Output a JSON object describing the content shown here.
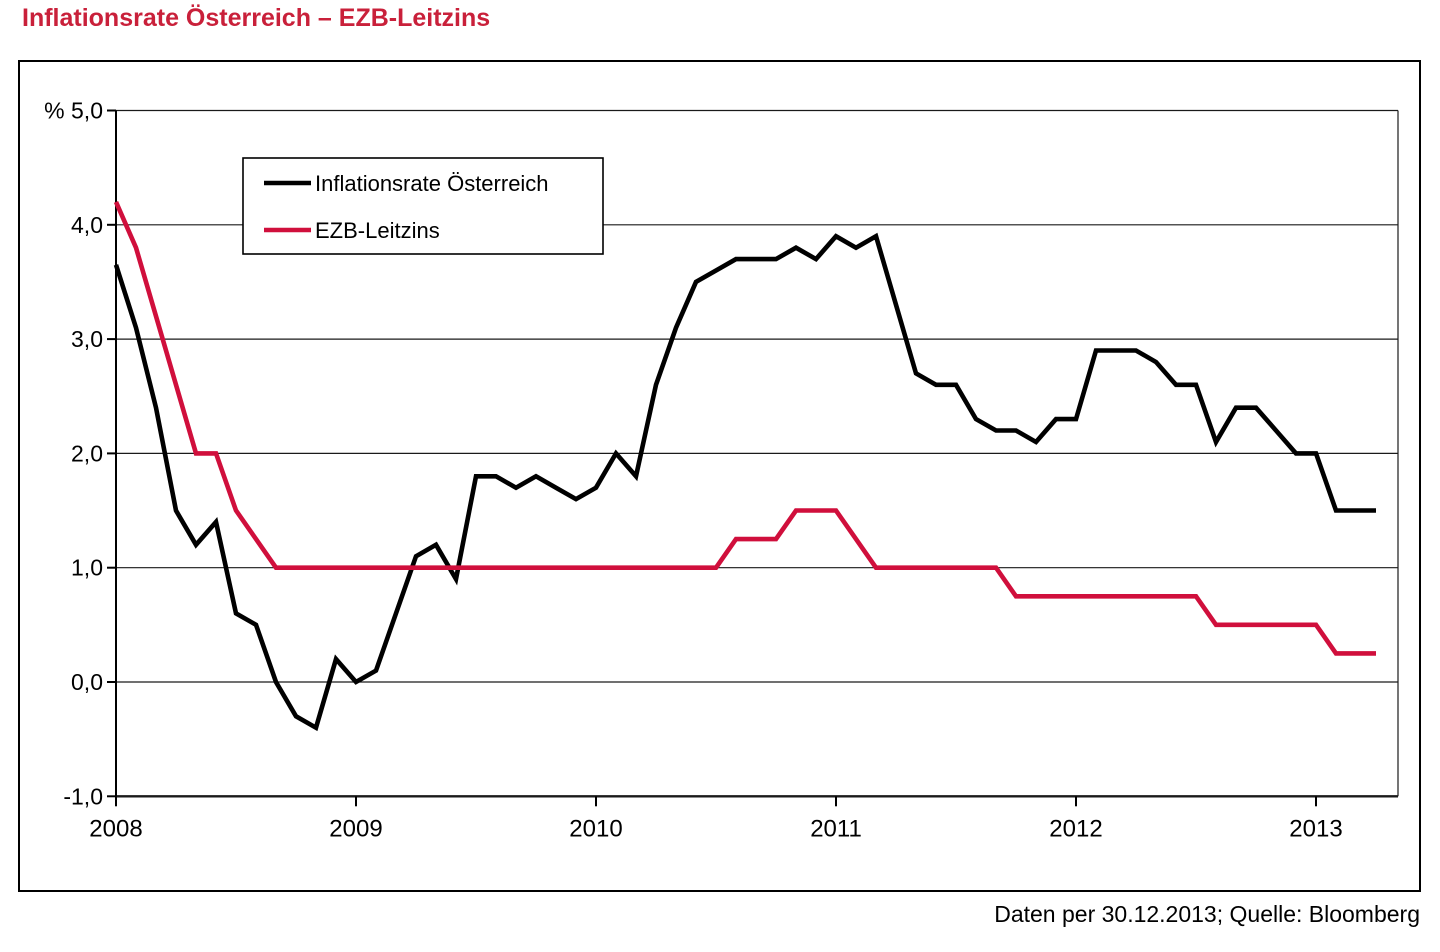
{
  "title": "Inflationsrate Österreich – EZB-Leitzins",
  "caption": "Daten per 30.12.2013; Quelle: Bloomberg",
  "colors": {
    "title_red": "#c9203a",
    "inflation_line": "#000000",
    "ezb_line": "#d00f3c",
    "grid": "#1a1a1a",
    "background": "#ffffff"
  },
  "chart_data": {
    "type": "line",
    "title": "Inflationsrate Österreich – EZB-Leitzins",
    "xlabel": "",
    "ylabel": "%",
    "x_start_year": 2008,
    "x_step_months": 1,
    "xlim": [
      2008.0,
      2013.34
    ],
    "ylim": [
      -1.0,
      5.0
    ],
    "grid": "horizontal",
    "legend_position": "upper-left-inside",
    "x_ticks": [
      2008,
      2009,
      2010,
      2011,
      2012,
      2013
    ],
    "x_tick_labels": [
      "2008",
      "2009",
      "2010",
      "2011",
      "2012",
      "2013"
    ],
    "y_ticks": [
      5.0,
      4.0,
      3.0,
      2.0,
      1.0,
      0.0,
      -1.0
    ],
    "y_tick_labels": [
      "% 5,0",
      "4,0",
      "3,0",
      "2,0",
      "1,0",
      "0,0",
      "-1,0"
    ],
    "series": [
      {
        "name": "Inflationsrate Österreich",
        "color": "#000000",
        "values": [
          3.65,
          3.1,
          2.4,
          1.5,
          1.2,
          1.4,
          0.6,
          0.5,
          0.0,
          -0.3,
          -0.4,
          0.2,
          0.0,
          0.1,
          0.6,
          1.1,
          1.2,
          0.9,
          1.8,
          1.8,
          1.7,
          1.8,
          1.7,
          1.6,
          1.7,
          2.0,
          1.8,
          2.6,
          3.1,
          3.5,
          3.6,
          3.7,
          3.7,
          3.7,
          3.8,
          3.7,
          3.9,
          3.8,
          3.9,
          3.3,
          2.7,
          2.6,
          2.6,
          2.3,
          2.2,
          2.2,
          2.1,
          2.3,
          2.3,
          2.9,
          2.9,
          2.9,
          2.8,
          2.6,
          2.6,
          2.1,
          2.4,
          2.4,
          2.2,
          2.0,
          2.0,
          1.5,
          1.5,
          1.5
        ]
      },
      {
        "name": "EZB-Leitzins",
        "color": "#d00f3c",
        "values": [
          4.2,
          3.8,
          3.2,
          2.6,
          2.0,
          2.0,
          1.5,
          1.25,
          1.0,
          1.0,
          1.0,
          1.0,
          1.0,
          1.0,
          1.0,
          1.0,
          1.0,
          1.0,
          1.0,
          1.0,
          1.0,
          1.0,
          1.0,
          1.0,
          1.0,
          1.0,
          1.0,
          1.0,
          1.0,
          1.0,
          1.0,
          1.25,
          1.25,
          1.25,
          1.5,
          1.5,
          1.5,
          1.25,
          1.0,
          1.0,
          1.0,
          1.0,
          1.0,
          1.0,
          1.0,
          0.75,
          0.75,
          0.75,
          0.75,
          0.75,
          0.75,
          0.75,
          0.75,
          0.75,
          0.75,
          0.5,
          0.5,
          0.5,
          0.5,
          0.5,
          0.5,
          0.25,
          0.25,
          0.25
        ]
      }
    ]
  }
}
